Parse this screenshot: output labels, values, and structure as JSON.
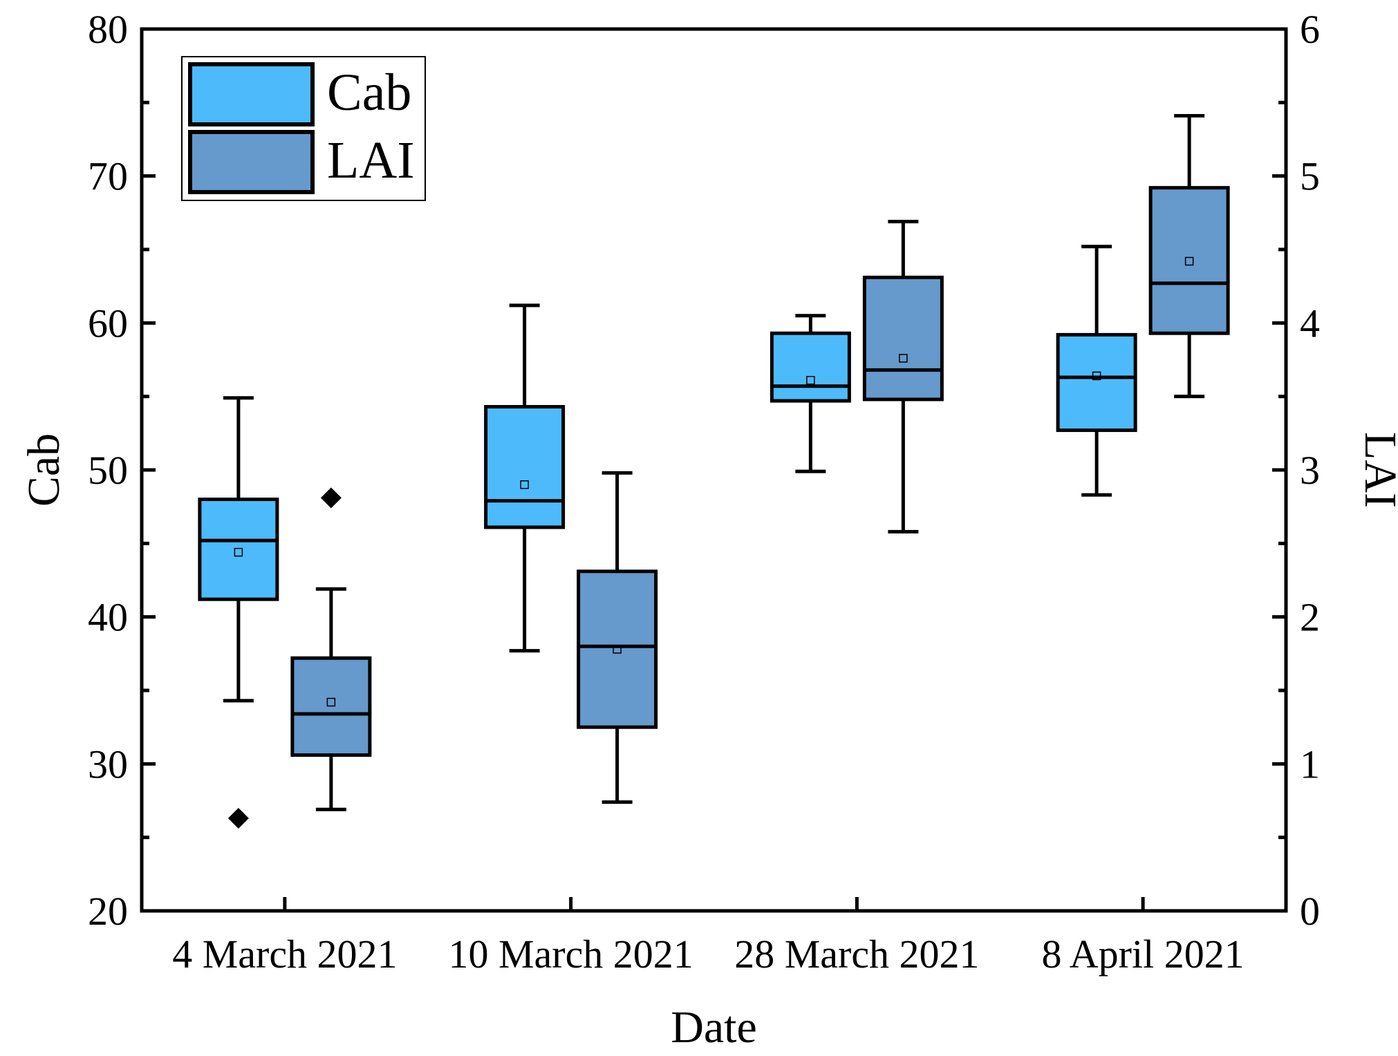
{
  "chart_data": {
    "type": "box",
    "categories": [
      "4 March 2021",
      "10 March 2021",
      "28 March 2021",
      "8 April 2021"
    ],
    "xlabel": "Date",
    "ylabel_left": "Cab",
    "ylabel_right": "LAI",
    "ylim_left": [
      20,
      80
    ],
    "yticks_left": [
      20,
      30,
      40,
      50,
      60,
      70,
      80
    ],
    "ylim_right": [
      0,
      6
    ],
    "yticks_right": [
      0,
      1,
      2,
      3,
      4,
      5,
      6
    ],
    "legend_position": "top-left",
    "series": [
      {
        "name": "Cab",
        "axis": "left",
        "color": "#4DBBFB",
        "boxes": [
          {
            "category": "4 March 2021",
            "whisker_low": 34.3,
            "q1": 41.2,
            "median": 45.2,
            "q3": 48.0,
            "whisker_high": 54.9,
            "mean": 44.4,
            "outliers": [
              26.3
            ]
          },
          {
            "category": "10 March 2021",
            "whisker_low": 37.7,
            "q1": 46.1,
            "median": 47.9,
            "q3": 54.3,
            "whisker_high": 61.2,
            "mean": 49.0,
            "outliers": []
          },
          {
            "category": "28 March 2021",
            "whisker_low": 49.9,
            "q1": 54.7,
            "median": 55.7,
            "q3": 59.3,
            "whisker_high": 60.5,
            "mean": 56.1,
            "outliers": []
          },
          {
            "category": "8 April 2021",
            "whisker_low": 48.3,
            "q1": 52.7,
            "median": 56.3,
            "q3": 59.2,
            "whisker_high": 65.2,
            "mean": 56.4,
            "outliers": []
          }
        ]
      },
      {
        "name": "LAI",
        "axis": "right",
        "color": "#6699CC",
        "boxes": [
          {
            "category": "4 March 2021",
            "whisker_low": 0.69,
            "q1": 1.06,
            "median": 1.34,
            "q3": 1.72,
            "whisker_high": 2.19,
            "mean": 1.42,
            "outliers": [
              2.81
            ]
          },
          {
            "category": "10 March 2021",
            "whisker_low": 0.74,
            "q1": 1.25,
            "median": 1.8,
            "q3": 2.31,
            "whisker_high": 2.98,
            "mean": 1.78,
            "outliers": []
          },
          {
            "category": "28 March 2021",
            "whisker_low": 2.58,
            "q1": 3.48,
            "median": 3.68,
            "q3": 4.31,
            "whisker_high": 4.69,
            "mean": 3.76,
            "outliers": []
          },
          {
            "category": "8 April 2021",
            "whisker_low": 3.5,
            "q1": 3.93,
            "median": 4.27,
            "q3": 4.92,
            "whisker_high": 5.41,
            "mean": 4.42,
            "outliers": []
          }
        ]
      }
    ]
  }
}
